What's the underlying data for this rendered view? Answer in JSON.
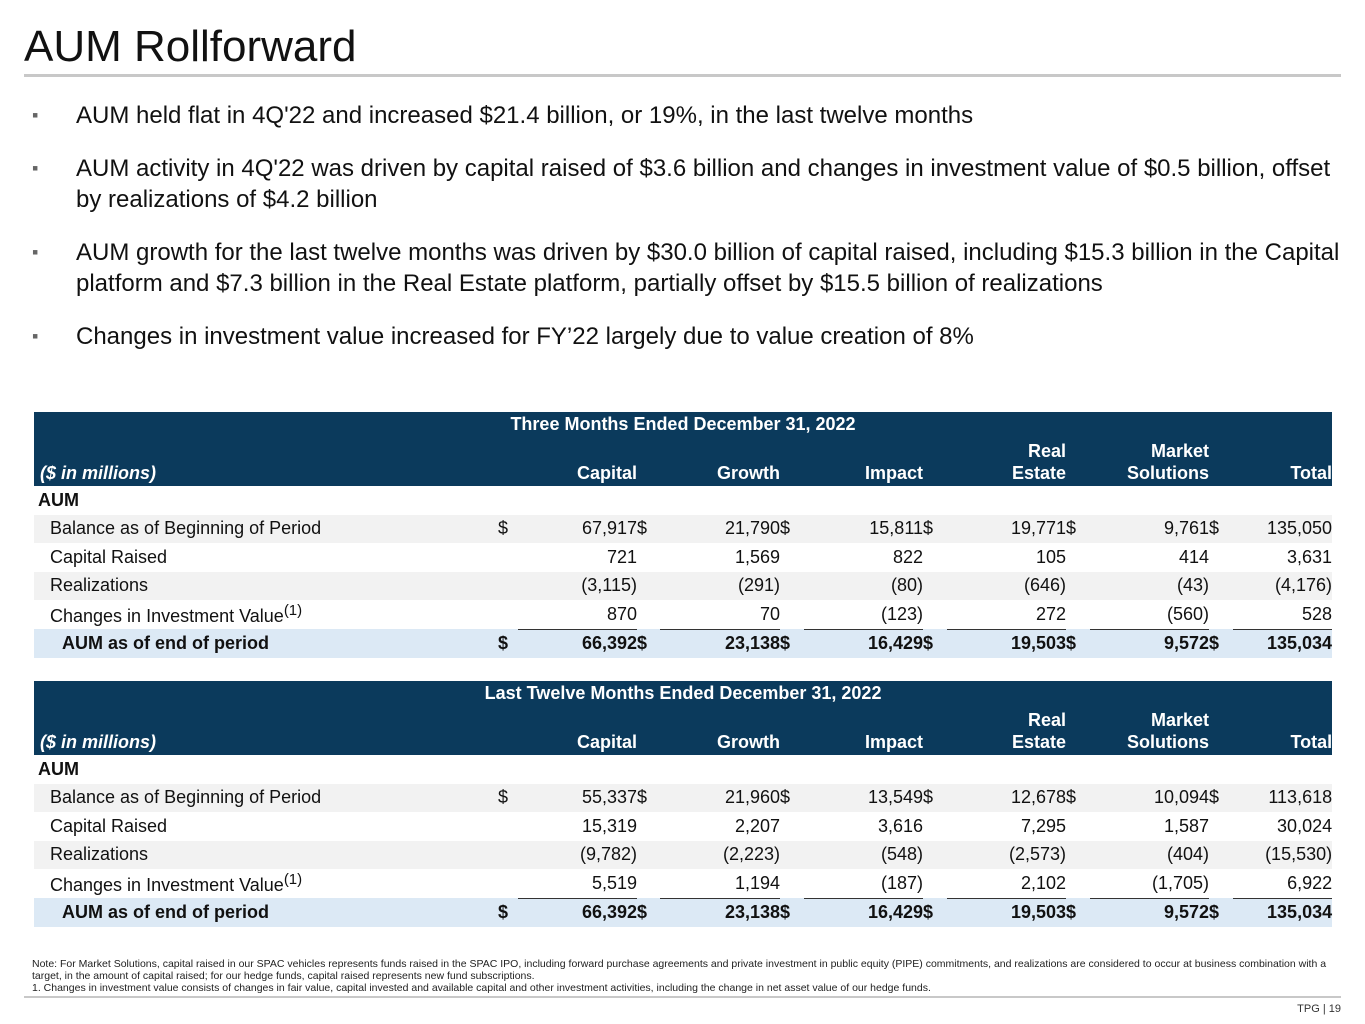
{
  "title": "AUM Rollforward",
  "bullets": [
    "AUM held flat in 4Q'22 and increased $21.4 billion, or 19%, in the last twelve months",
    "AUM activity in 4Q'22 was driven by capital raised of $3.6 billion and changes in investment value of $0.5 billion, offset by realizations of $4.2 billion",
    "AUM growth for the last twelve months was driven by $30.0 billion of capital raised, including $15.3 billion in the Capital platform and $7.3 billion in the Real Estate platform, partially offset by $15.5 billion of realizations",
    "Changes in investment value increased for FY’22 largely due to value creation of 8%"
  ],
  "bullet_marker": "▪",
  "columns": {
    "label": "($ in millions)",
    "capital": "Capital",
    "growth": "Growth",
    "impact": "Impact",
    "real_estate_1": "Real",
    "real_estate_2": "Estate",
    "market_1": "Market",
    "market_2": "Solutions",
    "total": "Total"
  },
  "currency": "$",
  "section_label": "AUM",
  "footnote_marker": "(1)",
  "tables": [
    {
      "period": "Three Months Ended December 31, 2022",
      "rows": {
        "beginning": {
          "label": "Balance as of Beginning of Period",
          "values": [
            "67,917",
            "21,790",
            "15,811",
            "19,771",
            "9,761",
            "135,050"
          ]
        },
        "raised": {
          "label": "Capital Raised",
          "values": [
            "721",
            "1,569",
            "822",
            "105",
            "414",
            "3,631"
          ]
        },
        "realizations": {
          "label": "Realizations",
          "values": [
            "(3,115)",
            "(291)",
            "(80)",
            "(646)",
            "(43)",
            "(4,176)"
          ]
        },
        "changes": {
          "label": "Changes in Investment Value",
          "values": [
            "870",
            "70",
            "(123)",
            "272",
            "(560)",
            "528"
          ]
        },
        "end": {
          "label": "AUM as of end of period",
          "values": [
            "66,392",
            "23,138",
            "16,429",
            "19,503",
            "9,572",
            "135,034"
          ]
        }
      }
    },
    {
      "period": "Last Twelve Months Ended December 31, 2022",
      "rows": {
        "beginning": {
          "label": "Balance as of Beginning of Period",
          "values": [
            "55,337",
            "21,960",
            "13,549",
            "12,678",
            "10,094",
            "113,618"
          ]
        },
        "raised": {
          "label": "Capital Raised",
          "values": [
            "15,319",
            "2,207",
            "3,616",
            "7,295",
            "1,587",
            "30,024"
          ]
        },
        "realizations": {
          "label": "Realizations",
          "values": [
            "(9,782)",
            "(2,223)",
            "(548)",
            "(2,573)",
            "(404)",
            "(15,530)"
          ]
        },
        "changes": {
          "label": "Changes in Investment Value",
          "values": [
            "5,519",
            "1,194",
            "(187)",
            "2,102",
            "(1,705)",
            "6,922"
          ]
        },
        "end": {
          "label": "AUM as of end of period",
          "values": [
            "66,392",
            "23,138",
            "16,429",
            "19,503",
            "9,572",
            "135,034"
          ]
        }
      }
    }
  ],
  "notes": {
    "market_solutions": "Note: For Market Solutions, capital raised in our SPAC vehicles represents funds raised in the SPAC IPO, including forward purchase agreements and private investment in public equity (PIPE) commitments, and realizations are considered to occur at business combination with a target, in the amount of capital raised; for our hedge funds, capital raised represents new fund subscriptions.",
    "footnote_1": "1. Changes in investment value consists of changes in fair value, capital invested and available capital and other investment activities, including the change in net asset value of our hedge funds."
  },
  "footer": "TPG | 19",
  "colors": {
    "header_bg": "#0b3a5c",
    "total_bg": "#dce9f5",
    "shade_bg": "#f2f2f2"
  }
}
